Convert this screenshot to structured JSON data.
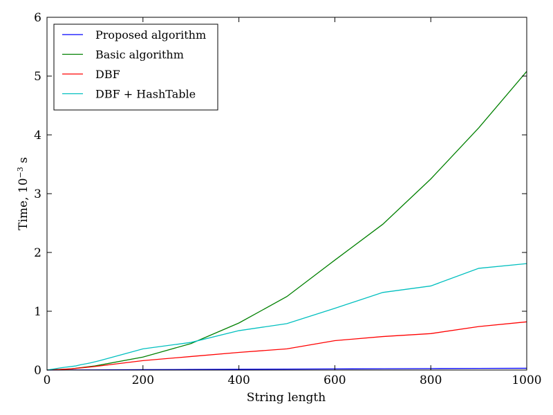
{
  "chart_data": {
    "type": "line",
    "xlabel": "String length",
    "ylabel": {
      "base": "Time, 10",
      "exponent": "−3",
      "unit": " s"
    },
    "xlim": [
      0,
      1000
    ],
    "ylim": [
      0,
      6
    ],
    "x_ticks": [
      "0",
      "200",
      "400",
      "600",
      "800",
      "1000"
    ],
    "y_ticks": [
      "0",
      "1",
      "2",
      "3",
      "4",
      "5",
      "6"
    ],
    "grid": false,
    "legend_position": "top-left",
    "series": [
      {
        "name": "Proposed algorithm",
        "color": "#0000ff",
        "x": [
          0,
          100,
          200,
          300,
          400,
          500,
          600,
          700,
          800,
          900,
          1000
        ],
        "y": [
          0,
          0.003,
          0.007,
          0.01,
          0.013,
          0.016,
          0.019,
          0.022,
          0.025,
          0.028,
          0.03
        ]
      },
      {
        "name": "Basic algorithm",
        "color": "#008000",
        "x": [
          0,
          50,
          100,
          200,
          300,
          400,
          500,
          600,
          700,
          800,
          900,
          1000
        ],
        "y": [
          0,
          0.02,
          0.07,
          0.22,
          0.45,
          0.8,
          1.25,
          1.87,
          2.48,
          3.25,
          4.12,
          5.08
        ]
      },
      {
        "name": "DBF",
        "color": "#ff0000",
        "x": [
          0,
          50,
          100,
          200,
          300,
          400,
          500,
          600,
          700,
          800,
          900,
          1000
        ],
        "y": [
          0,
          0.02,
          0.06,
          0.16,
          0.23,
          0.3,
          0.36,
          0.5,
          0.57,
          0.62,
          0.74,
          0.82
        ]
      },
      {
        "name": "DBF + HashTable",
        "color": "#00bfbf",
        "x": [
          0,
          30,
          60,
          70,
          90,
          110,
          200,
          300,
          400,
          500,
          600,
          700,
          800,
          900,
          1000
        ],
        "y": [
          0,
          0.04,
          0.07,
          0.09,
          0.12,
          0.16,
          0.36,
          0.47,
          0.67,
          0.79,
          1.05,
          1.32,
          1.43,
          1.73,
          1.81
        ]
      }
    ]
  }
}
